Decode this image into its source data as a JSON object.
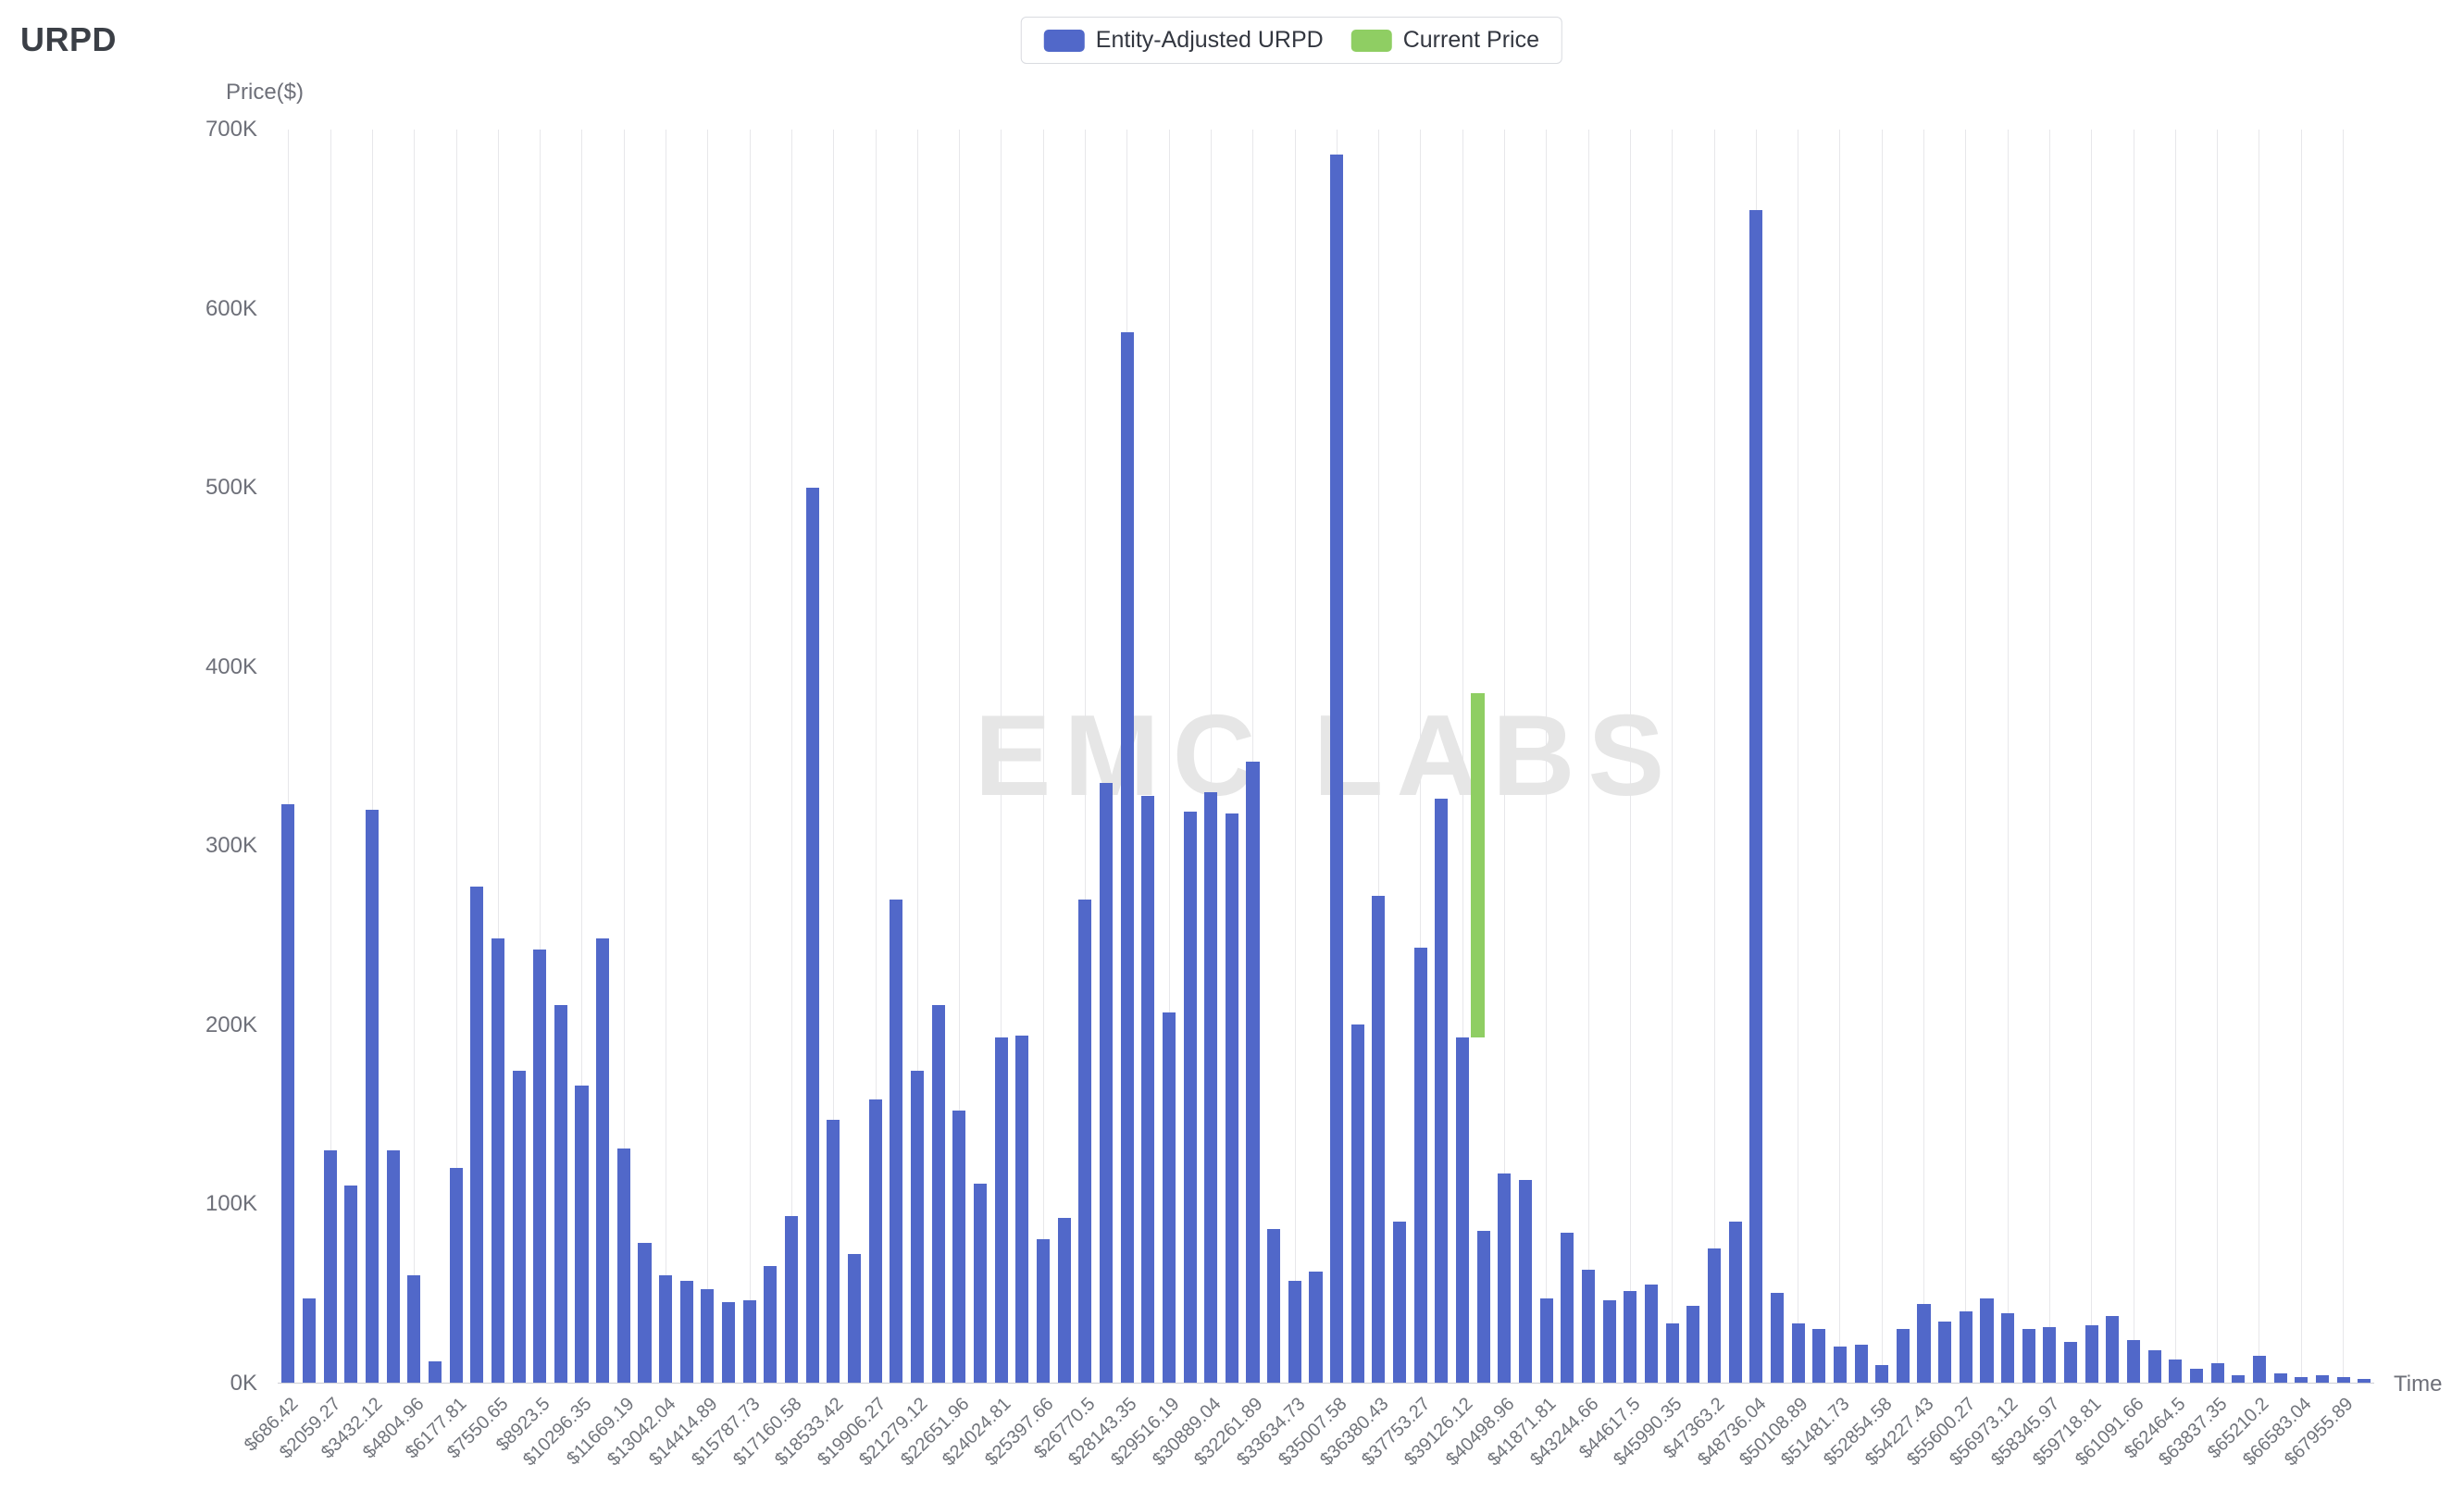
{
  "page": {
    "title": "URPD"
  },
  "legend": {
    "urpd_label": "Entity-Adjusted URPD",
    "current_price_label": "Current Price"
  },
  "chart_data": {
    "type": "bar",
    "title": "URPD",
    "ylabel": "Price($)",
    "xlabel": "Time",
    "ylim_k": [
      0,
      700
    ],
    "grid": "vertical-only",
    "legend_position": "top-center",
    "watermark": "EMC LABS",
    "colors": {
      "urpd_bar": "#5168c9",
      "current_price_bar": "#8fce63",
      "gridline": "#e7e7ea"
    },
    "y_ticks": [
      "700K",
      "600K",
      "500K",
      "400K",
      "300K",
      "200K",
      "100K",
      "0K"
    ],
    "x_tick_labels": [
      "$686.42",
      "$2059.27",
      "$3432.12",
      "$4804.96",
      "$6177.81",
      "$7550.65",
      "$8923.5",
      "$10296.35",
      "$11669.19",
      "$13042.04",
      "$14414.89",
      "$15787.73",
      "$17160.58",
      "$18533.42",
      "$19906.27",
      "$21279.12",
      "$22651.96",
      "$24024.81",
      "$25397.66",
      "$26770.5",
      "$28143.35",
      "$29516.19",
      "$30889.04",
      "$32261.89",
      "$33634.73",
      "$35007.58",
      "$36380.43",
      "$37753.27",
      "$39126.12",
      "$40498.96",
      "$41871.81",
      "$43244.66",
      "$44617.5",
      "$45990.35",
      "$47363.2",
      "$48736.04",
      "$50108.89",
      "$51481.73",
      "$52854.58",
      "$54227.43",
      "$55600.27",
      "$56973.12",
      "$58345.97",
      "$59718.81",
      "$61091.66",
      "$62464.5",
      "$63837.35",
      "$65210.2",
      "$66583.04",
      "$67955.89"
    ],
    "series": [
      {
        "name": "Entity-Adjusted URPD",
        "values_k": [
          323,
          47,
          130,
          110,
          320,
          130,
          60,
          12,
          120,
          277,
          248,
          174,
          242,
          211,
          166,
          248,
          131,
          78,
          60,
          57,
          52,
          45,
          46,
          65,
          93,
          500,
          147,
          72,
          158,
          270,
          174,
          211,
          152,
          111,
          193,
          194,
          80,
          92,
          270,
          335,
          587,
          328,
          207,
          319,
          330,
          318,
          347,
          86,
          57,
          62,
          686,
          200,
          272,
          90,
          243,
          326,
          193,
          85,
          117,
          113,
          47,
          84,
          63,
          46,
          51,
          55,
          33,
          43,
          75,
          90,
          655,
          50,
          33,
          30,
          20,
          21,
          10,
          30,
          44,
          34,
          40,
          47,
          39,
          30,
          31,
          23,
          32,
          37,
          24,
          18,
          13,
          8,
          11,
          4,
          15,
          5,
          3,
          4,
          3,
          2
        ]
      }
    ],
    "current_price": {
      "name": "Current Price",
      "slot_index": 56.9,
      "from_k": 193,
      "to_k": 385
    }
  }
}
